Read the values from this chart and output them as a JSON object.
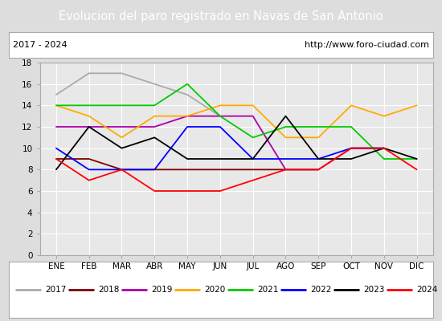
{
  "title": "Evolucion del paro registrado en Navas de San Antonio",
  "subtitle_left": "2017 - 2024",
  "subtitle_right": "http://www.foro-ciudad.com",
  "months": [
    "ENE",
    "FEB",
    "MAR",
    "ABR",
    "MAY",
    "JUN",
    "JUL",
    "AGO",
    "SEP",
    "OCT",
    "NOV",
    "DIC"
  ],
  "ylim": [
    0,
    18
  ],
  "yticks": [
    0,
    2,
    4,
    6,
    8,
    10,
    12,
    14,
    16,
    18
  ],
  "series": {
    "2017": {
      "color": "#aaaaaa",
      "data": [
        15,
        17,
        17,
        null,
        15,
        13,
        null,
        null,
        null,
        null,
        null,
        null
      ]
    },
    "2018": {
      "color": "#800000",
      "data": [
        9,
        9,
        8,
        8,
        8,
        8,
        8,
        8,
        8,
        null,
        null,
        null
      ]
    },
    "2019": {
      "color": "#aa00aa",
      "data": [
        12,
        12,
        12,
        12,
        13,
        13,
        13,
        8,
        8,
        10,
        10,
        null
      ]
    },
    "2020": {
      "color": "#ffaa00",
      "data": [
        14,
        13,
        11,
        13,
        13,
        14,
        14,
        11,
        11,
        14,
        13,
        14
      ]
    },
    "2021": {
      "color": "#00cc00",
      "data": [
        14,
        14,
        14,
        14,
        16,
        13,
        11,
        12,
        12,
        12,
        9,
        9
      ]
    },
    "2022": {
      "color": "#0000ff",
      "data": [
        10,
        8,
        8,
        8,
        12,
        12,
        9,
        9,
        9,
        10,
        10,
        null
      ]
    },
    "2023": {
      "color": "#000000",
      "data": [
        8,
        12,
        10,
        11,
        9,
        9,
        9,
        13,
        9,
        9,
        10,
        9
      ]
    },
    "2024": {
      "color": "#ff0000",
      "data": [
        9,
        7,
        8,
        6,
        6,
        6,
        7,
        8,
        8,
        10,
        10,
        8
      ]
    }
  },
  "background_color": "#dddddd",
  "plot_bg_color": "#e8e8e8",
  "title_bg_color": "#4466bb",
  "title_color": "#ffffff",
  "header_bg_color": "#ffffff",
  "legend_bg_color": "#ffffff",
  "border_color": "#aaaaaa"
}
